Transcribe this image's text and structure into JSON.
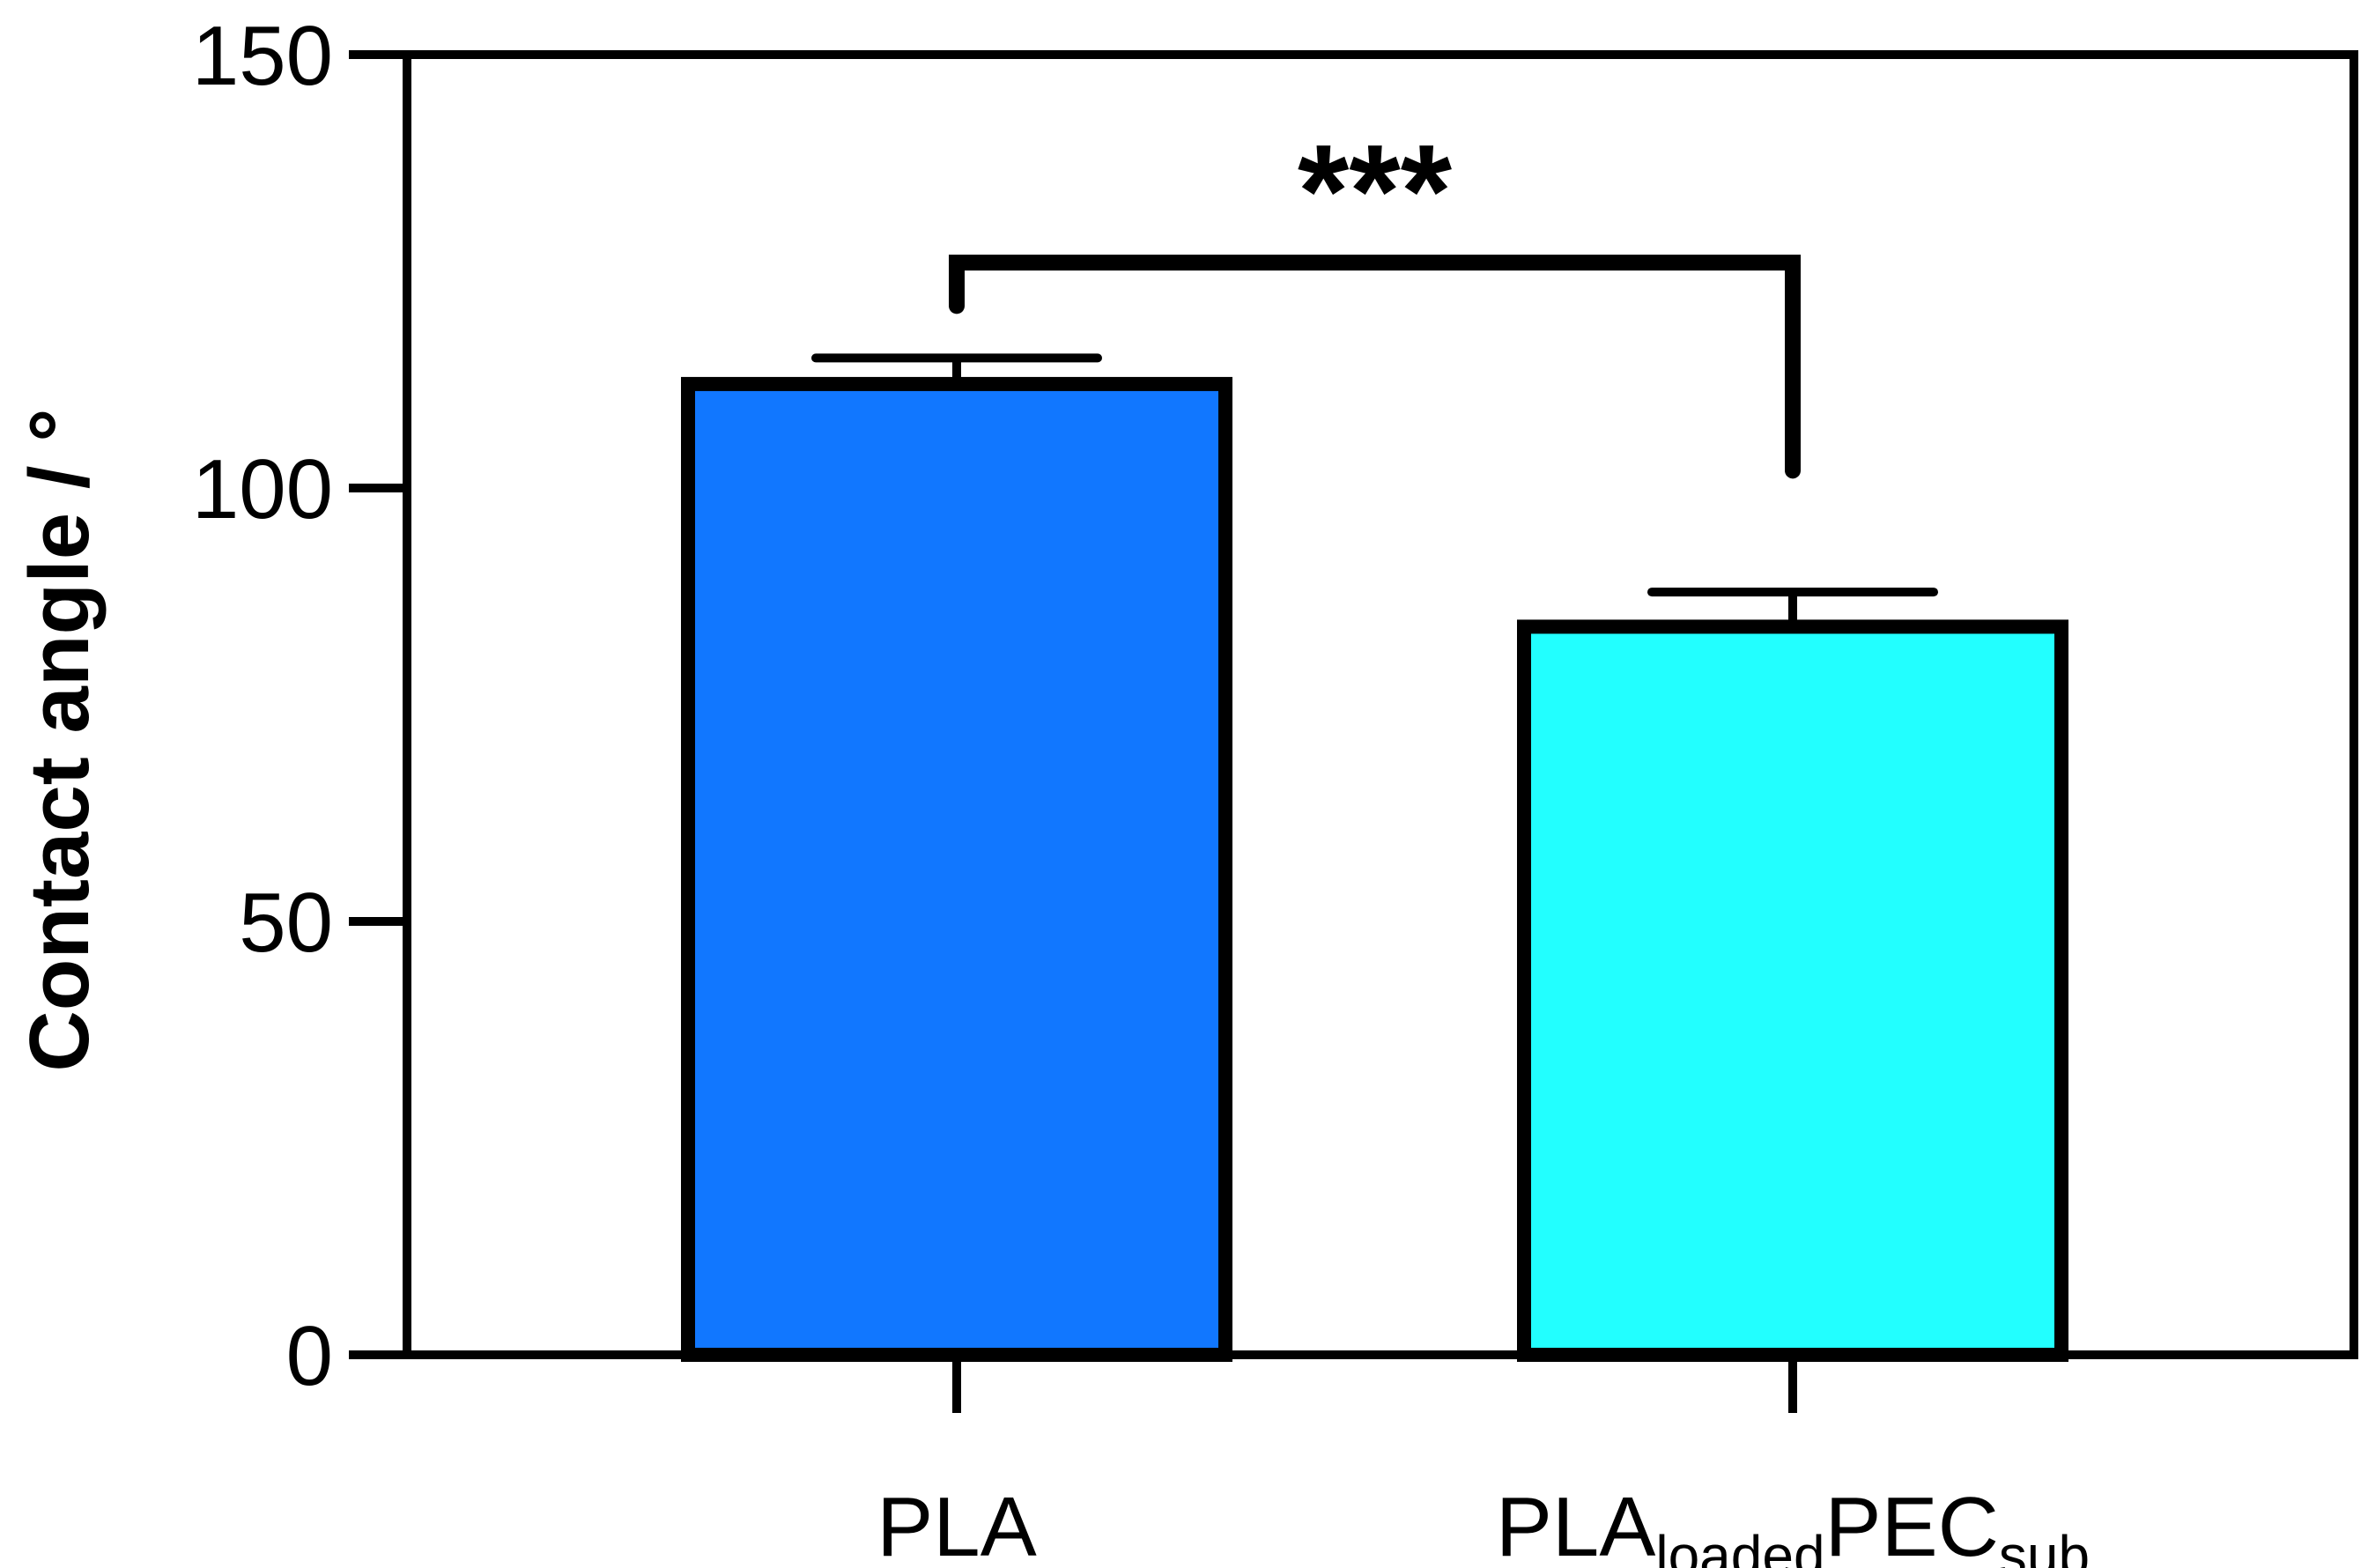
{
  "chart_data": {
    "type": "bar",
    "ylabel": "Contact angle / °",
    "ylim": [
      0,
      150
    ],
    "yticks": [
      0,
      50,
      100,
      150
    ],
    "grid": false,
    "categories": [
      {
        "main": "PLA",
        "parts": [
          {
            "text": "PLA",
            "sub": false
          }
        ]
      },
      {
        "main": "PLAloadedPECsub",
        "parts": [
          {
            "text": "PLA",
            "sub": false
          },
          {
            "text": "loaded",
            "sub": true
          },
          {
            "text": "PEC",
            "sub": false
          },
          {
            "text": "sub",
            "sub": true
          }
        ]
      }
    ],
    "values": [
      112,
      84
    ],
    "errors": [
      3,
      4
    ],
    "colors": [
      "#1177ff",
      "#22ffff"
    ],
    "significance": {
      "label": "***",
      "between": [
        0,
        1
      ]
    }
  }
}
